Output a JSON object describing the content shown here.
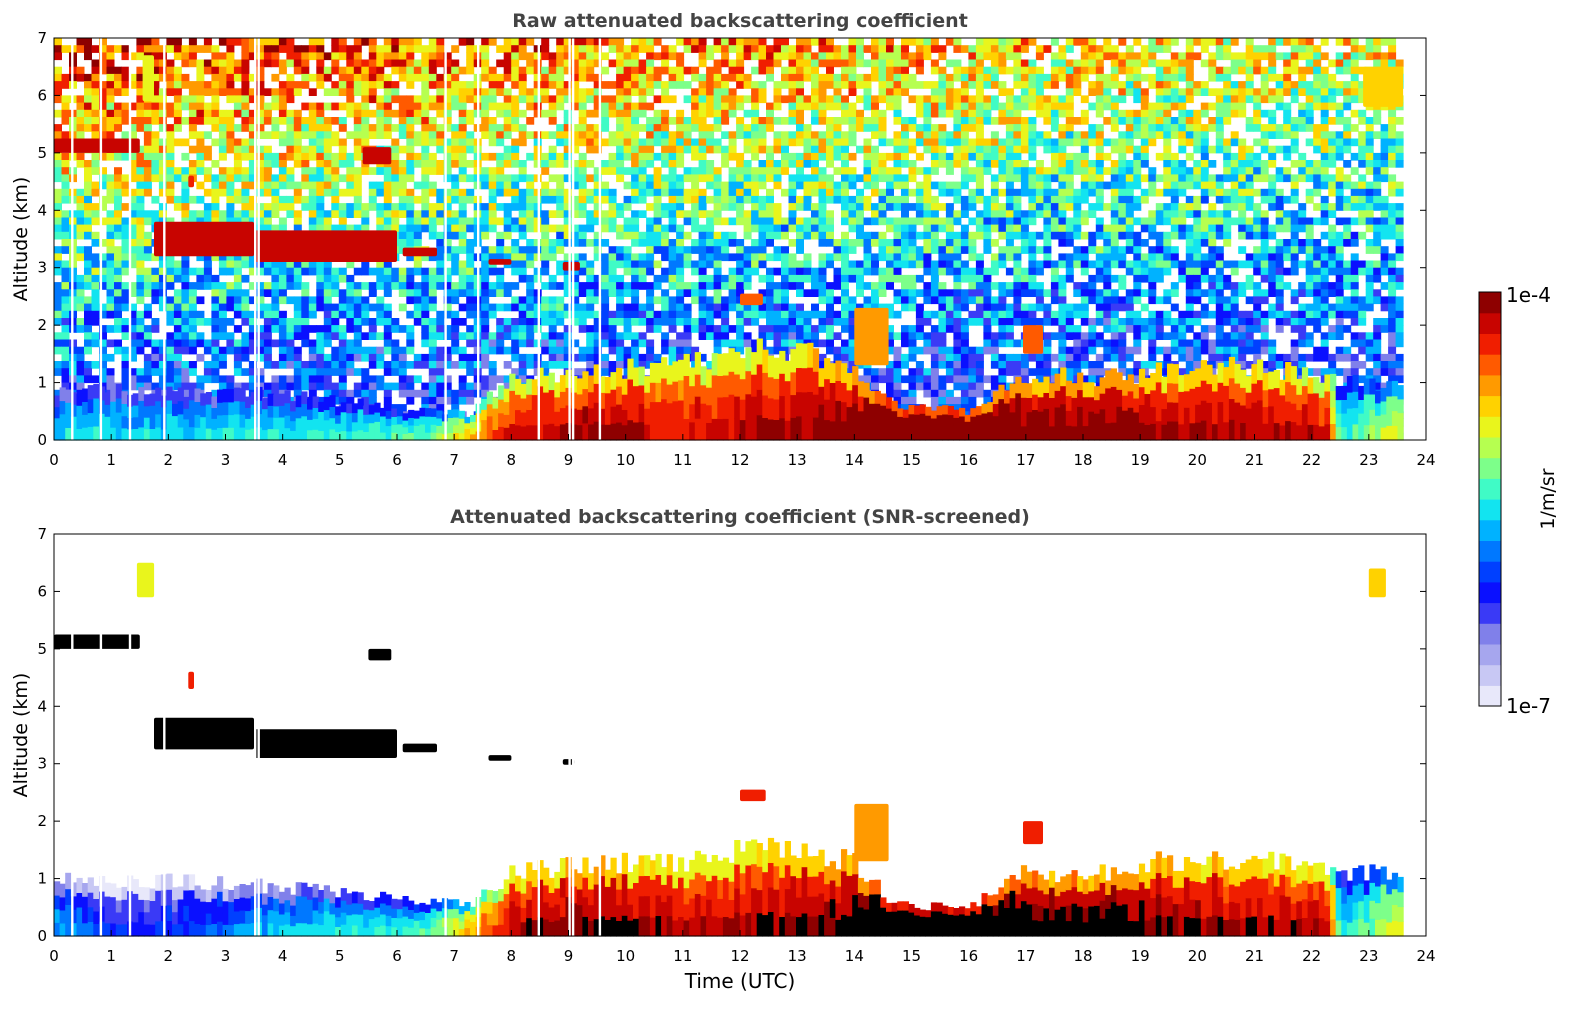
{
  "figure": {
    "xlabel": "Time (UTC)",
    "colorbar": {
      "label": "1/m/sr",
      "max_label": "1e-4",
      "min_label": "1e-7",
      "colors": [
        "#e8e8fa",
        "#c8c8f4",
        "#a6a6ee",
        "#8080ea",
        "#3a3af6",
        "#0a10ff",
        "#0040ff",
        "#0078ff",
        "#00b2ff",
        "#12e4f0",
        "#40fbc6",
        "#7dff8a",
        "#b6ff50",
        "#e9f51c",
        "#ffd200",
        "#ff9a00",
        "#ff5a00",
        "#f01e00",
        "#c80400",
        "#8e0000"
      ]
    }
  },
  "chart_data": [
    {
      "type": "heatmap",
      "panel": "raw",
      "title": "Raw attenuated backscattering coefficient",
      "xlabel": "",
      "ylabel": "Altitude (km)",
      "xlim": [
        0,
        24
      ],
      "ylim": [
        0,
        7
      ],
      "x_ticks": [
        "0",
        "1",
        "2",
        "3",
        "4",
        "5",
        "6",
        "7",
        "8",
        "9",
        "10",
        "11",
        "12",
        "13",
        "14",
        "15",
        "16",
        "17",
        "18",
        "19",
        "20",
        "21",
        "22",
        "23",
        "24"
      ],
      "y_ticks": [
        "0",
        "1",
        "2",
        "3",
        "4",
        "5",
        "6",
        "7"
      ],
      "data_end_time": 23.6,
      "color_scale": {
        "min": 1e-07,
        "max": 0.0001,
        "scale": "log"
      },
      "gaps": [
        0.32,
        0.82,
        1.33,
        1.93,
        3.52,
        3.58,
        6.85,
        7.42,
        8.48,
        9.02,
        9.08,
        9.55
      ],
      "features": [
        {
          "label": "cloud",
          "t": [
            0.0,
            1.5
          ],
          "z": [
            5.0,
            5.25
          ],
          "level": 0.97
        },
        {
          "label": "cloud",
          "t": [
            1.55,
            1.75
          ],
          "z": [
            5.9,
            6.7
          ],
          "level": 0.7
        },
        {
          "label": "cloud",
          "t": [
            2.35,
            2.45
          ],
          "z": [
            4.4,
            4.6
          ],
          "level": 0.9
        },
        {
          "label": "cloud",
          "t": [
            1.75,
            3.5
          ],
          "z": [
            3.2,
            3.8
          ],
          "level": 0.97
        },
        {
          "label": "cloud",
          "t": [
            3.5,
            6.0
          ],
          "z": [
            3.1,
            3.65
          ],
          "level": 0.97
        },
        {
          "label": "cloud",
          "t": [
            6.1,
            6.7
          ],
          "z": [
            3.2,
            3.35
          ],
          "level": 0.97
        },
        {
          "label": "cloud",
          "t": [
            5.4,
            5.9
          ],
          "z": [
            4.8,
            5.1
          ],
          "level": 0.95
        },
        {
          "label": "cloud",
          "t": [
            7.6,
            8.0
          ],
          "z": [
            3.05,
            3.15
          ],
          "level": 0.95
        },
        {
          "label": "cloud",
          "t": [
            8.9,
            9.2
          ],
          "z": [
            2.95,
            3.1
          ],
          "level": 0.95
        },
        {
          "label": "cloud",
          "t": [
            12.0,
            12.4
          ],
          "z": [
            2.35,
            2.55
          ],
          "level": 0.85
        },
        {
          "label": "cloud",
          "t": [
            14.0,
            14.6
          ],
          "z": [
            1.3,
            2.3
          ],
          "level": 0.8
        },
        {
          "label": "cloud",
          "t": [
            16.95,
            17.3
          ],
          "z": [
            1.5,
            2.0
          ],
          "level": 0.85
        },
        {
          "label": "cloud",
          "t": [
            22.9,
            23.6
          ],
          "z": [
            5.8,
            6.5
          ],
          "level": 0.72
        }
      ],
      "boundary_layer": [
        {
          "t": 0,
          "top": 0.85,
          "level": 0.32
        },
        {
          "t": 2,
          "top": 0.85,
          "level": 0.32
        },
        {
          "t": 4,
          "top": 0.8,
          "level": 0.35
        },
        {
          "t": 6.5,
          "top": 0.5,
          "level": 0.4
        },
        {
          "t": 7.3,
          "top": 0.45,
          "level": 0.62
        },
        {
          "t": 8,
          "top": 1.1,
          "level": 0.78
        },
        {
          "t": 9.5,
          "top": 1.2,
          "level": 0.85
        },
        {
          "t": 11,
          "top": 1.3,
          "level": 0.78
        },
        {
          "t": 12.5,
          "top": 1.7,
          "level": 0.82
        },
        {
          "t": 14,
          "top": 1.3,
          "level": 0.88
        },
        {
          "t": 14.7,
          "top": 0.6,
          "level": 0.98
        },
        {
          "t": 16,
          "top": 0.5,
          "level": 0.98
        },
        {
          "t": 17,
          "top": 1.1,
          "level": 0.9
        },
        {
          "t": 18.8,
          "top": 1.1,
          "level": 0.88
        },
        {
          "t": 19.2,
          "top": 1.2,
          "level": 0.85
        },
        {
          "t": 21,
          "top": 1.3,
          "level": 0.82
        },
        {
          "t": 22.3,
          "top": 1.1,
          "level": 0.8
        },
        {
          "t": 22.5,
          "top": 1.0,
          "level": 0.35
        },
        {
          "t": 23.6,
          "top": 1.0,
          "level": 0.55
        }
      ]
    },
    {
      "type": "heatmap",
      "panel": "snr-screened",
      "title": "Attenuated backscattering coefficient (SNR-screened)",
      "xlabel": "Time (UTC)",
      "ylabel": "Altitude (km)",
      "xlim": [
        0,
        24
      ],
      "ylim": [
        0,
        7
      ],
      "x_ticks": [
        "0",
        "1",
        "2",
        "3",
        "4",
        "5",
        "6",
        "7",
        "8",
        "9",
        "10",
        "11",
        "12",
        "13",
        "14",
        "15",
        "16",
        "17",
        "18",
        "19",
        "20",
        "21",
        "22",
        "23",
        "24"
      ],
      "y_ticks": [
        "0",
        "1",
        "2",
        "3",
        "4",
        "5",
        "6",
        "7"
      ],
      "data_end_time": 23.6,
      "color_scale": {
        "min": 1e-07,
        "max": 0.0001,
        "scale": "log"
      },
      "saturated_color": "#000000",
      "gaps": [
        0.32,
        0.82,
        1.33,
        1.93,
        3.52,
        3.58,
        6.85,
        7.42,
        8.48,
        9.02,
        9.08,
        9.55
      ],
      "features": [
        {
          "label": "cloud",
          "t": [
            0.0,
            1.5
          ],
          "z": [
            5.0,
            5.25
          ],
          "level": 1.1
        },
        {
          "label": "cloud",
          "t": [
            1.45,
            1.75
          ],
          "z": [
            5.9,
            6.5
          ],
          "level": 0.68
        },
        {
          "label": "cloud",
          "t": [
            2.35,
            2.45
          ],
          "z": [
            4.3,
            4.6
          ],
          "level": 0.9
        },
        {
          "label": "cloud",
          "t": [
            1.75,
            3.5
          ],
          "z": [
            3.25,
            3.8
          ],
          "level": 1.1
        },
        {
          "label": "cloud",
          "t": [
            3.5,
            6.0
          ],
          "z": [
            3.1,
            3.6
          ],
          "level": 1.1
        },
        {
          "label": "cloud",
          "t": [
            6.1,
            6.7
          ],
          "z": [
            3.2,
            3.35
          ],
          "level": 1.1
        },
        {
          "label": "cloud",
          "t": [
            5.5,
            5.9
          ],
          "z": [
            4.8,
            5.0
          ],
          "level": 1.1
        },
        {
          "label": "cloud",
          "t": [
            7.6,
            8.0
          ],
          "z": [
            3.05,
            3.15
          ],
          "level": 1.1
        },
        {
          "label": "cloud",
          "t": [
            8.9,
            9.1
          ],
          "z": [
            2.98,
            3.08
          ],
          "level": 1.1
        },
        {
          "label": "cloud",
          "t": [
            12.0,
            12.45
          ],
          "z": [
            2.35,
            2.55
          ],
          "level": 0.88
        },
        {
          "label": "cloud",
          "t": [
            14.0,
            14.6
          ],
          "z": [
            1.3,
            2.3
          ],
          "level": 0.8
        },
        {
          "label": "cloud",
          "t": [
            16.95,
            17.3
          ],
          "z": [
            1.6,
            2.0
          ],
          "level": 0.88
        },
        {
          "label": "cloud",
          "t": [
            23.0,
            23.3
          ],
          "z": [
            5.9,
            6.4
          ],
          "level": 0.72
        }
      ],
      "boundary_layer": [
        {
          "t": 0,
          "top": 1.0,
          "level": 0.28
        },
        {
          "t": 1.2,
          "top": 0.95,
          "level": 0.12
        },
        {
          "t": 2.5,
          "top": 0.95,
          "level": 0.18
        },
        {
          "t": 4,
          "top": 0.85,
          "level": 0.3
        },
        {
          "t": 6.5,
          "top": 0.6,
          "level": 0.38
        },
        {
          "t": 7.3,
          "top": 0.55,
          "level": 0.62
        },
        {
          "t": 8,
          "top": 1.1,
          "level": 0.82
        },
        {
          "t": 9.5,
          "top": 1.25,
          "level": 0.88
        },
        {
          "t": 11,
          "top": 1.3,
          "level": 0.8
        },
        {
          "t": 12.5,
          "top": 1.6,
          "level": 0.84
        },
        {
          "t": 14,
          "top": 1.3,
          "level": 0.88
        },
        {
          "t": 14.7,
          "top": 0.55,
          "level": 1.05
        },
        {
          "t": 16,
          "top": 0.5,
          "level": 1.02
        },
        {
          "t": 17,
          "top": 1.1,
          "level": 0.92
        },
        {
          "t": 18.8,
          "top": 1.1,
          "level": 0.9
        },
        {
          "t": 19.2,
          "top": 1.3,
          "level": 0.86
        },
        {
          "t": 21,
          "top": 1.3,
          "level": 0.84
        },
        {
          "t": 22.3,
          "top": 1.2,
          "level": 0.8
        },
        {
          "t": 22.5,
          "top": 1.1,
          "level": 0.32
        },
        {
          "t": 23.6,
          "top": 1.1,
          "level": 0.55
        }
      ]
    }
  ]
}
